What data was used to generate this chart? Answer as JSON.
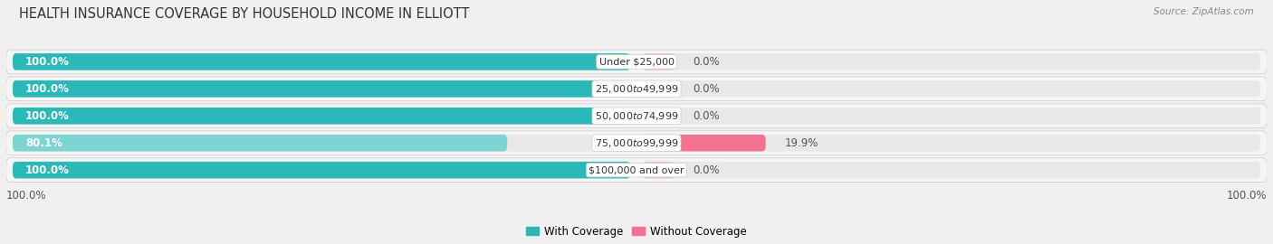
{
  "title": "HEALTH INSURANCE COVERAGE BY HOUSEHOLD INCOME IN ELLIOTT",
  "source": "Source: ZipAtlas.com",
  "categories": [
    "Under $25,000",
    "$25,000 to $49,999",
    "$50,000 to $74,999",
    "$75,000 to $99,999",
    "$100,000 and over"
  ],
  "with_coverage": [
    100.0,
    100.0,
    100.0,
    80.1,
    100.0
  ],
  "without_coverage": [
    0.0,
    0.0,
    0.0,
    19.9,
    0.0
  ],
  "color_with_full": "#2ab8b8",
  "color_with_partial": "#7dd4d2",
  "color_without_zero": "#f5b8cb",
  "color_without_nonzero": "#f2728f",
  "bar_bg_color": "#e8e8e8",
  "row_bg_color": "#f5f5f5",
  "background_color": "#f0f0f0",
  "title_fontsize": 10.5,
  "source_fontsize": 7.5,
  "bar_label_fontsize": 8.5,
  "cat_label_fontsize": 8.0,
  "tick_fontsize": 8.5,
  "legend_fontsize": 8.5,
  "left_pct_label": "100.0%",
  "right_pct_label": "100.0%"
}
